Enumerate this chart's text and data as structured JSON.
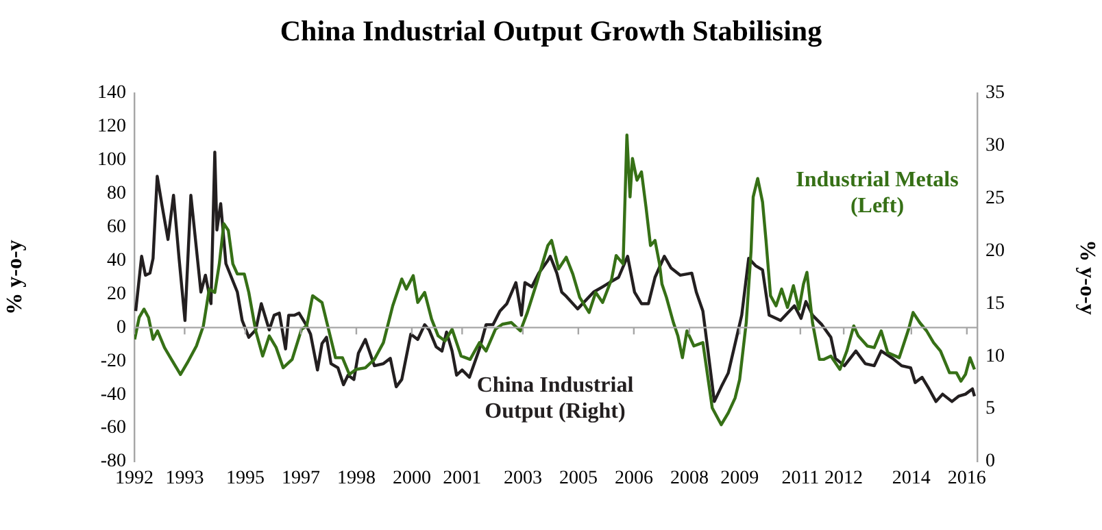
{
  "chart_data": {
    "type": "line",
    "title": "China Industrial Output Growth Stabilising",
    "ylabel": "% y-o-y",
    "y2label": "% y-o-y",
    "xlim": [
      1992,
      2016.3
    ],
    "xticks": [
      {
        "value": 1992,
        "label": "1992"
      },
      {
        "value": 1993.45,
        "label": "1993"
      },
      {
        "value": 1995.2,
        "label": "1995"
      },
      {
        "value": 1996.8,
        "label": "1997"
      },
      {
        "value": 1998.4,
        "label": "1998"
      },
      {
        "value": 2000,
        "label": "2000"
      },
      {
        "value": 2001.45,
        "label": "2001"
      },
      {
        "value": 2003.2,
        "label": "2003"
      },
      {
        "value": 2004.8,
        "label": "2005"
      },
      {
        "value": 2006.4,
        "label": "2006"
      },
      {
        "value": 2008,
        "label": "2008"
      },
      {
        "value": 2009.45,
        "label": "2009"
      },
      {
        "value": 2011.2,
        "label": "2011"
      },
      {
        "value": 2012.45,
        "label": "2012"
      },
      {
        "value": 2014.4,
        "label": "2014"
      },
      {
        "value": 2016,
        "label": "2016"
      }
    ],
    "ylim": [
      -80,
      140
    ],
    "yticks": [
      -80,
      -60,
      -40,
      -20,
      0,
      20,
      40,
      60,
      80,
      100,
      120,
      140
    ],
    "y2lim": [
      0,
      35
    ],
    "y2ticks": [
      0,
      5,
      10,
      15,
      20,
      25,
      30,
      35
    ],
    "series": [
      {
        "name": "Industrial Metals (Left)",
        "color": "#367016",
        "x": [
          1992.01,
          1992.14,
          1992.28,
          1992.41,
          1992.54,
          1992.67,
          1992.87,
          1993.07,
          1993.33,
          1993.53,
          1993.79,
          1993.99,
          1994.16,
          1994.32,
          1994.45,
          1994.58,
          1994.71,
          1994.84,
          1994.97,
          1995.17,
          1995.3,
          1995.5,
          1995.7,
          1995.89,
          1996.09,
          1996.29,
          1996.55,
          1996.82,
          1996.97,
          1997.14,
          1997.41,
          1997.61,
          1997.8,
          1998,
          1998.2,
          1998.39,
          1998.66,
          1998.92,
          1999.18,
          1999.45,
          1999.71,
          1999.84,
          2000.04,
          2000.17,
          2000.37,
          2000.57,
          2000.76,
          2000.96,
          2001.16,
          2001.42,
          2001.68,
          2001.95,
          2002.14,
          2002.41,
          2002.61,
          2002.87,
          2003.13,
          2003.33,
          2003.59,
          2003.92,
          2004.03,
          2004.23,
          2004.45,
          2004.64,
          2004.84,
          2005.11,
          2005.3,
          2005.5,
          2005.76,
          2005.89,
          2006.09,
          2006.2,
          2006.29,
          2006.36,
          2006.49,
          2006.62,
          2006.75,
          2006.88,
          2007.01,
          2007.14,
          2007.21,
          2007.34,
          2007.54,
          2007.67,
          2007.8,
          2007.93,
          2008.13,
          2008.39,
          2008.66,
          2008.92,
          2009.12,
          2009.32,
          2009.45,
          2009.64,
          2009.78,
          2009.84,
          2009.97,
          2010.11,
          2010.21,
          2010.34,
          2010.5,
          2010.66,
          2010.83,
          2011,
          2011.16,
          2011.29,
          2011.39,
          2011.55,
          2011.75,
          2011.88,
          2012.08,
          2012.34,
          2012.54,
          2012.74,
          2012.87,
          2013.13,
          2013.33,
          2013.53,
          2013.72,
          2014.05,
          2014.32,
          2014.45,
          2014.64,
          2014.84,
          2015.04,
          2015.24,
          2015.5,
          2015.7,
          2015.83,
          2015.96,
          2016.09,
          2016.22
        ],
        "values": [
          -7,
          6,
          11,
          6,
          -7,
          -2,
          -12,
          -19,
          -28,
          -21,
          -11,
          1,
          23,
          21,
          38,
          62,
          58,
          38,
          32,
          32,
          21,
          -2,
          -17,
          -5,
          -12,
          -24,
          -19,
          -1,
          1,
          19,
          15,
          -2,
          -18,
          -18,
          -28,
          -25,
          -24,
          -19,
          -9,
          13,
          29,
          23,
          31,
          15,
          21,
          5,
          -5,
          -8,
          -1,
          -17,
          -19,
          -9,
          -14,
          -1,
          2,
          3,
          -2,
          9,
          26,
          49,
          52,
          35,
          42,
          32,
          18,
          9,
          21,
          15,
          29,
          43,
          38,
          115,
          78,
          101,
          88,
          93,
          72,
          49,
          52,
          38,
          26,
          18,
          3,
          -5,
          -18,
          -2,
          -11,
          -9,
          -48,
          -58,
          -51,
          -42,
          -31,
          3,
          46,
          78,
          89,
          75,
          52,
          19,
          13,
          23,
          12,
          25,
          11,
          26,
          33,
          3,
          -19,
          -19,
          -17,
          -25,
          -14,
          1,
          -5,
          -11,
          -12,
          -2,
          -15,
          -18,
          -1,
          9,
          3,
          -2,
          -9,
          -14,
          -27,
          -27,
          -32,
          -28,
          -18,
          -25
        ]
      },
      {
        "name": "China Industrial Output (Right)",
        "color": "#231f20",
        "axis": "y2",
        "x": [
          1992.04,
          1992.21,
          1992.32,
          1992.45,
          1992.54,
          1992.66,
          1992.8,
          1992.97,
          1993.13,
          1993.29,
          1993.46,
          1993.63,
          1993.92,
          1994.05,
          1994.21,
          1994.32,
          1994.38,
          1994.49,
          1994.64,
          1994.97,
          1995.11,
          1995.3,
          1995.5,
          1995.66,
          1995.89,
          1996.03,
          1996.18,
          1996.36,
          1996.45,
          1996.62,
          1996.75,
          1996.95,
          1997.08,
          1997.28,
          1997.41,
          1997.54,
          1997.67,
          1997.87,
          1998.03,
          1998.16,
          1998.33,
          1998.46,
          1998.66,
          1998.92,
          1999.18,
          1999.38,
          1999.55,
          1999.71,
          1999.97,
          2000.17,
          2000.37,
          2000.5,
          2000.7,
          2000.87,
          2001,
          2001.16,
          2001.29,
          2001.45,
          2001.66,
          2001.95,
          2002.14,
          2002.34,
          2002.54,
          2002.74,
          2003,
          2003.16,
          2003.26,
          2003.46,
          2003.66,
          2003.92,
          2003.99,
          2004.18,
          2004.32,
          2004.45,
          2004.78,
          2005.24,
          2005.5,
          2005.7,
          2005.96,
          2006.22,
          2006.42,
          2006.62,
          2006.82,
          2007.01,
          2007.28,
          2007.47,
          2007.74,
          2008.07,
          2008.2,
          2008.39,
          2008.53,
          2008.72,
          2008.92,
          2009.12,
          2009.32,
          2009.51,
          2009.71,
          2009.91,
          2010.11,
          2010.3,
          2010.63,
          2011.03,
          2011.22,
          2011.36,
          2011.55,
          2011.82,
          2012.08,
          2012.21,
          2012.47,
          2012.8,
          2013.07,
          2013.33,
          2013.53,
          2013.86,
          2014.12,
          2014.38,
          2014.51,
          2014.71,
          2014.91,
          2015.11,
          2015.3,
          2015.57,
          2015.76,
          2015.96,
          2016.16,
          2016.22
        ],
        "values": [
          14.3,
          19.5,
          17.7,
          17.9,
          19.3,
          27.1,
          24.3,
          21.1,
          25.3,
          19.3,
          13.4,
          25.3,
          16.1,
          17.7,
          15,
          29.4,
          22,
          24.5,
          18.8,
          16.1,
          13.4,
          11.8,
          12.5,
          15,
          12.5,
          13.9,
          14.1,
          10.7,
          13.9,
          13.9,
          14.1,
          13,
          12.1,
          8.7,
          11.2,
          11.8,
          9.3,
          8.9,
          7.3,
          8.2,
          7.8,
          10.3,
          11.6,
          9.1,
          9.3,
          9.8,
          7.1,
          7.8,
          12.1,
          11.6,
          13,
          12.5,
          10.9,
          10.5,
          12.3,
          10.5,
          8.2,
          8.7,
          8,
          10.7,
          13,
          13,
          14.3,
          15,
          17,
          13.9,
          17,
          16.6,
          17.9,
          19.1,
          19.5,
          17.9,
          16.1,
          15.7,
          14.5,
          16.1,
          16.6,
          17,
          17.5,
          19.5,
          16.1,
          15,
          15,
          17.5,
          19.5,
          18.4,
          17.7,
          17.9,
          16.1,
          14.3,
          10.7,
          5.7,
          7.1,
          8.4,
          11.2,
          13.9,
          19.3,
          18.6,
          18.2,
          13.9,
          13.4,
          14.8,
          13.6,
          15.2,
          13.9,
          13,
          11.8,
          9.8,
          9.1,
          10.5,
          9.3,
          9.1,
          10.5,
          9.8,
          9.1,
          8.9,
          7.5,
          8,
          6.9,
          5.7,
          6.4,
          5.7,
          6.2,
          6.4,
          6.9,
          6.2
        ]
      }
    ]
  }
}
